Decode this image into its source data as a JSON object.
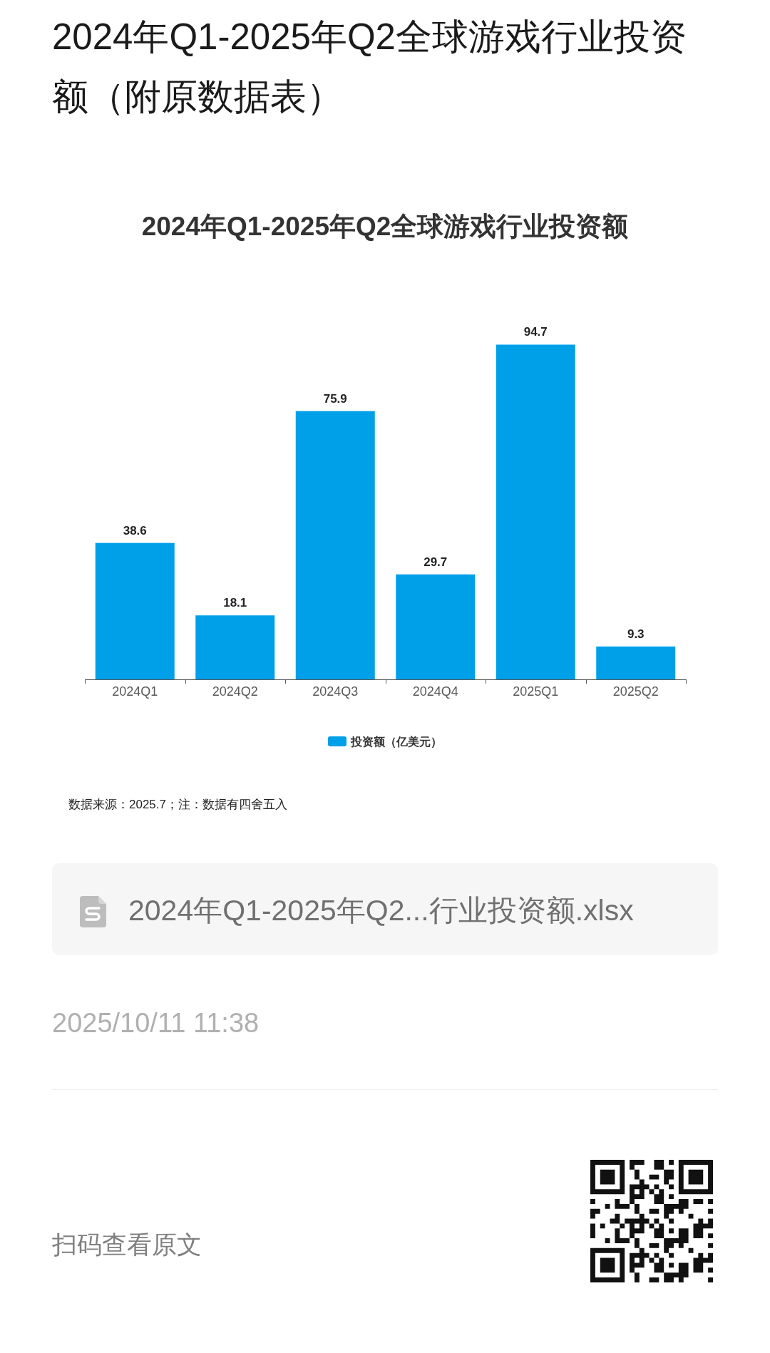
{
  "chart_data": {
    "type": "bar",
    "title": "2024年Q1-2025年Q2全球游戏行业投资额（附原数据表）",
    "subtitle": "2024年Q1-2025年Q2全球游戏行业投资额",
    "categories": [
      "2024Q1",
      "2024Q2",
      "2024Q3",
      "2024Q4",
      "2025Q1",
      "2025Q2"
    ],
    "series": [
      {
        "name": "投资额（亿美元）",
        "color": "#00a0e9",
        "values": [
          38.6,
          18.1,
          75.9,
          29.7,
          94.7,
          9.3
        ]
      }
    ],
    "data_labels": true,
    "legend": "bottom",
    "annotations": [
      "数据来源：2025.7；注：数据有四舍五入",
      "2024年Q1-2025年Q2...行业投资额.xlsx",
      "2025/10/11 11:38",
      "扫码查看原文"
    ]
  }
}
